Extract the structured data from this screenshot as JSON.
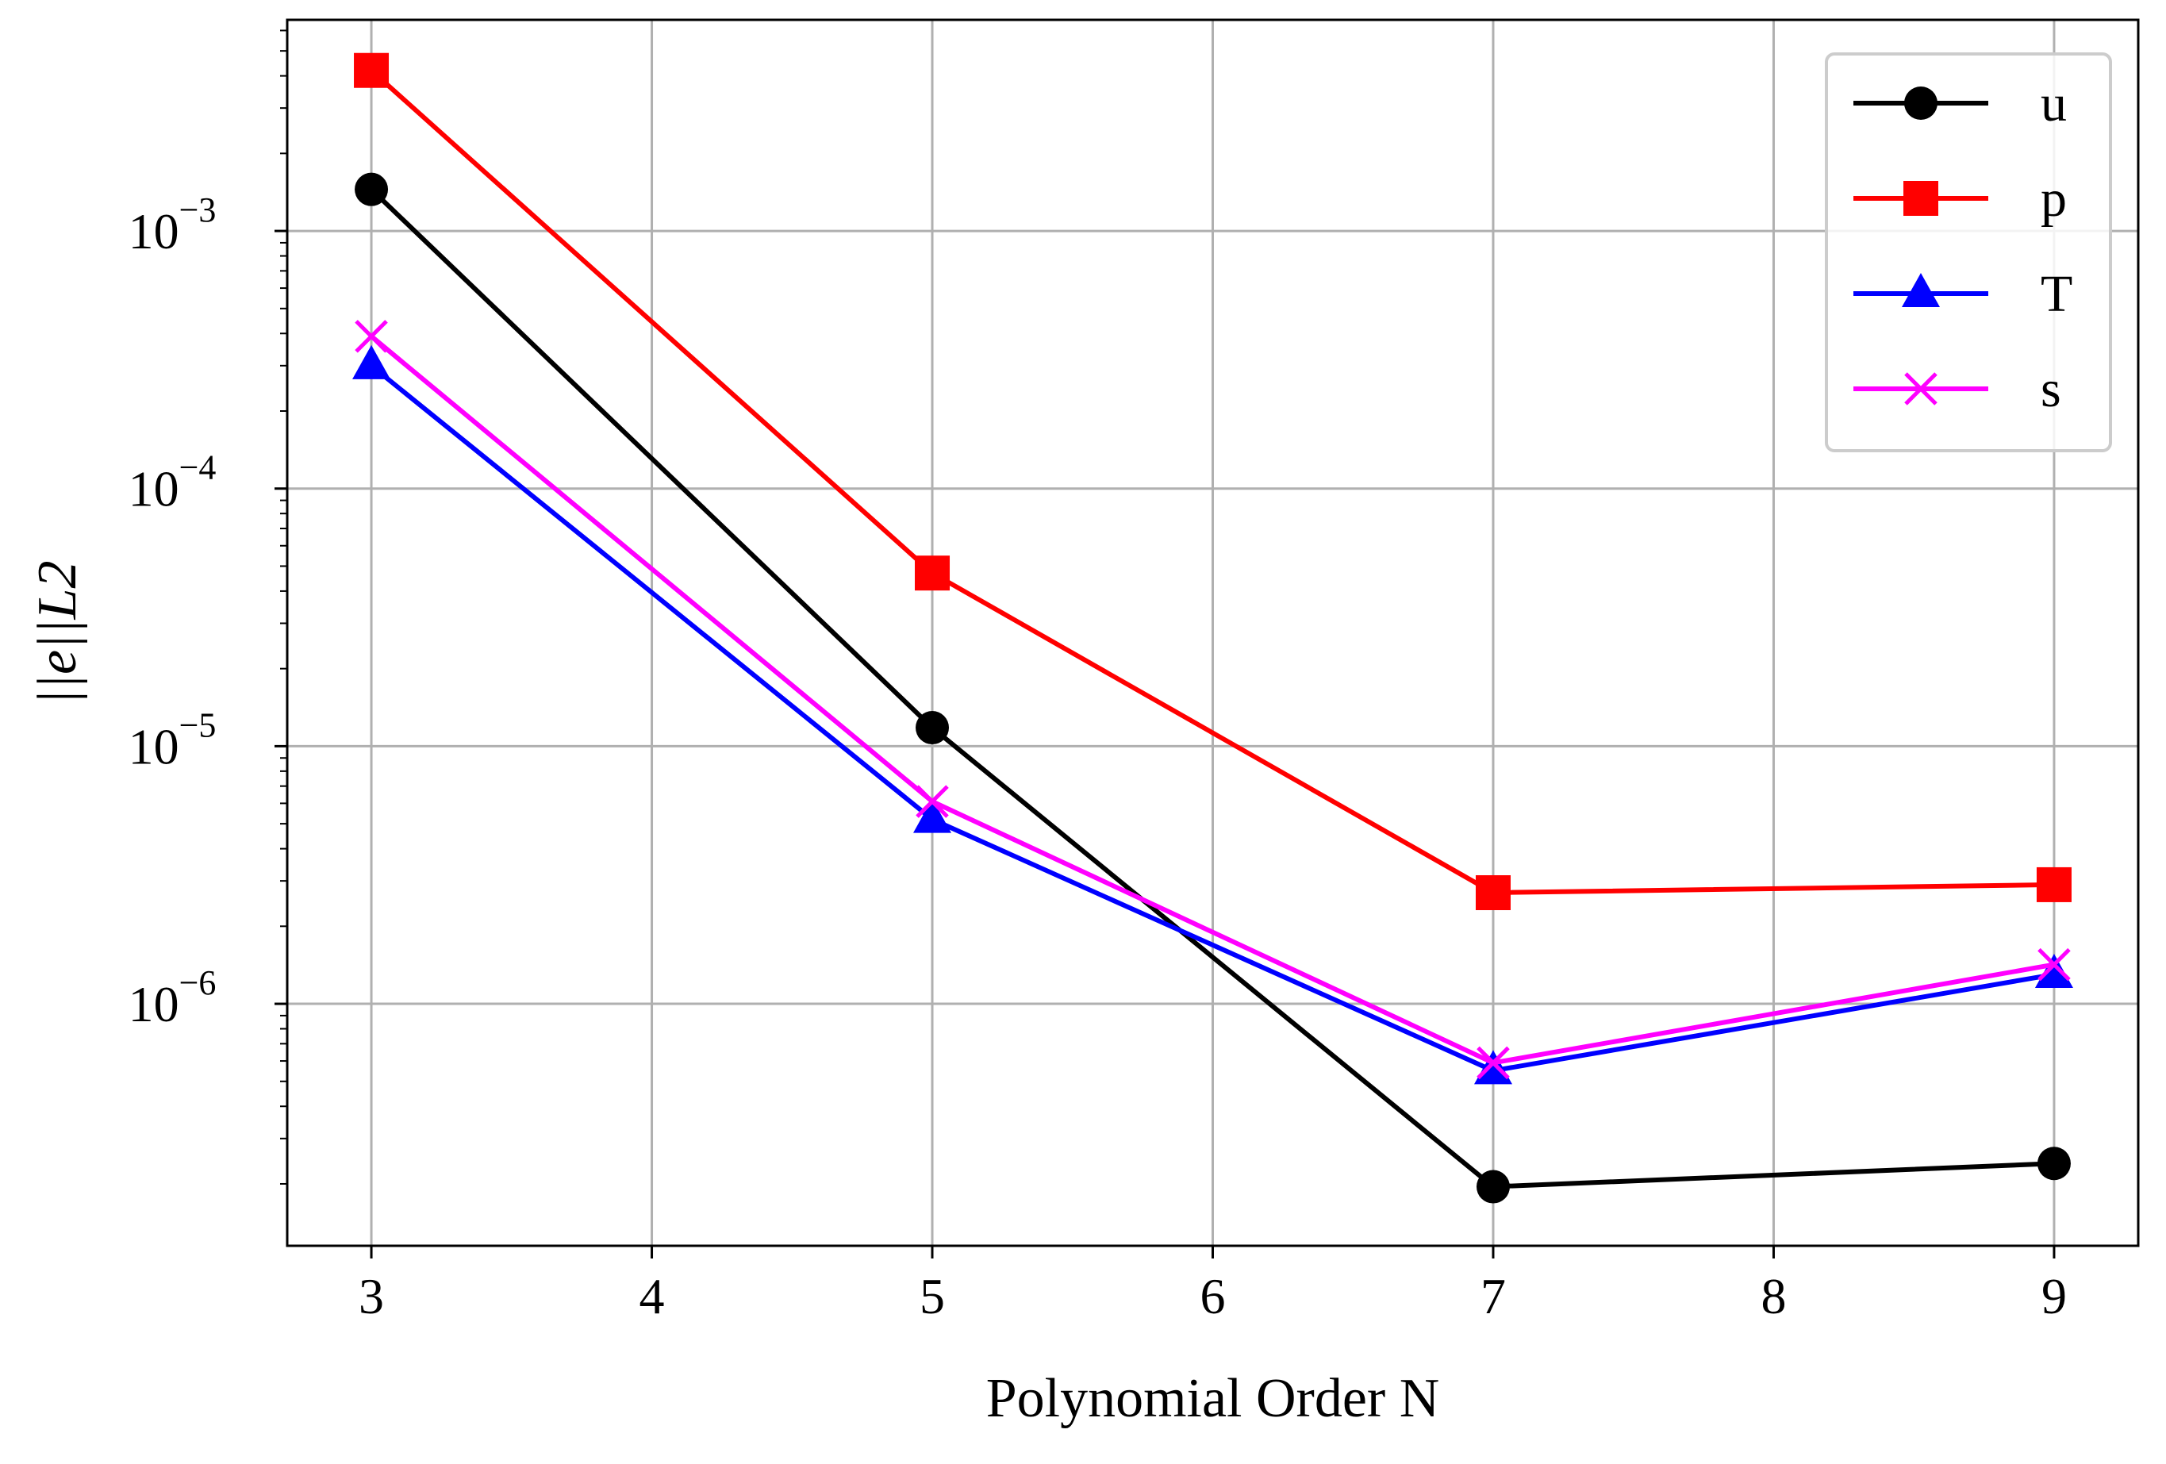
{
  "chart_data": {
    "type": "line",
    "xscale": "linear",
    "yscale": "log",
    "xlabel": "Polynomial Order N",
    "ylabel": "||e||L2",
    "xlim": [
      2.7,
      9.3
    ],
    "ylim": [
      1.15e-07,
      0.0066
    ],
    "xticks": [
      3,
      4,
      5,
      6,
      7,
      8,
      9
    ],
    "yticks": [
      {
        "value": 1e-06,
        "base": "10",
        "exp": "−6"
      },
      {
        "value": 1e-05,
        "base": "10",
        "exp": "−5"
      },
      {
        "value": 0.0001,
        "base": "10",
        "exp": "−4"
      },
      {
        "value": 0.001,
        "base": "10",
        "exp": "−3"
      }
    ],
    "grid": true,
    "legend_position": "top-right",
    "x": [
      3,
      5,
      7,
      9
    ],
    "series": [
      {
        "name": "u",
        "color": "#000000",
        "marker": "circle",
        "values": [
          0.00145,
          1.18e-05,
          1.95e-07,
          2.4e-07
        ]
      },
      {
        "name": "p",
        "color": "#ff0000",
        "marker": "square",
        "values": [
          0.0042,
          4.7e-05,
          2.7e-06,
          2.9e-06
        ]
      },
      {
        "name": "T",
        "color": "#0000ff",
        "marker": "triangle",
        "values": [
          0.0003,
          5.2e-06,
          5.5e-07,
          1.3e-06
        ]
      },
      {
        "name": "s",
        "color": "#ff00ff",
        "marker": "x",
        "values": [
          0.00039,
          6.1e-06,
          5.9e-07,
          1.42e-06
        ]
      }
    ]
  }
}
